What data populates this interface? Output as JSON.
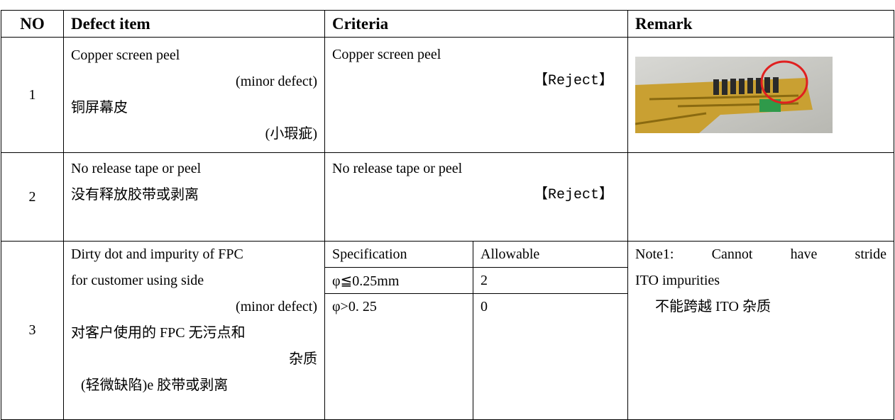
{
  "table": {
    "header": [
      "NO",
      "Defect item",
      "Criteria",
      "Remark"
    ],
    "rows": [
      {
        "no": "1",
        "defect": [
          "Copper screen peel",
          "(minor defect)",
          "铜屏幕皮",
          "(小瑕疵)"
        ],
        "criteria": [
          "Copper screen peel",
          "【Reject】"
        ]
      },
      {
        "no": "2",
        "defect": [
          "No release tape or peel",
          "没有释放胶带或剥离"
        ],
        "criteria": [
          "No release tape or peel",
          "【Reject】"
        ]
      },
      {
        "no": "3",
        "defect": [
          "Dirty dot and impurity of FPC",
          "for customer using side",
          "(minor defect)",
          "对客户使用的 FPC 无污点和",
          "杂质",
          "(轻微缺陷)e 胶带或剥离"
        ],
        "criteria_table": {
          "header": [
            "Specification",
            "Allowable"
          ],
          "rows": [
            [
              "φ≦0.25mm",
              "2"
            ],
            [
              "φ>0. 25",
              "0"
            ]
          ]
        },
        "remark": [
          "Note1:",
          "Cannot",
          "have",
          "stride",
          "ITO impurities",
          "不能跨越 ITO 杂质"
        ]
      }
    ]
  }
}
